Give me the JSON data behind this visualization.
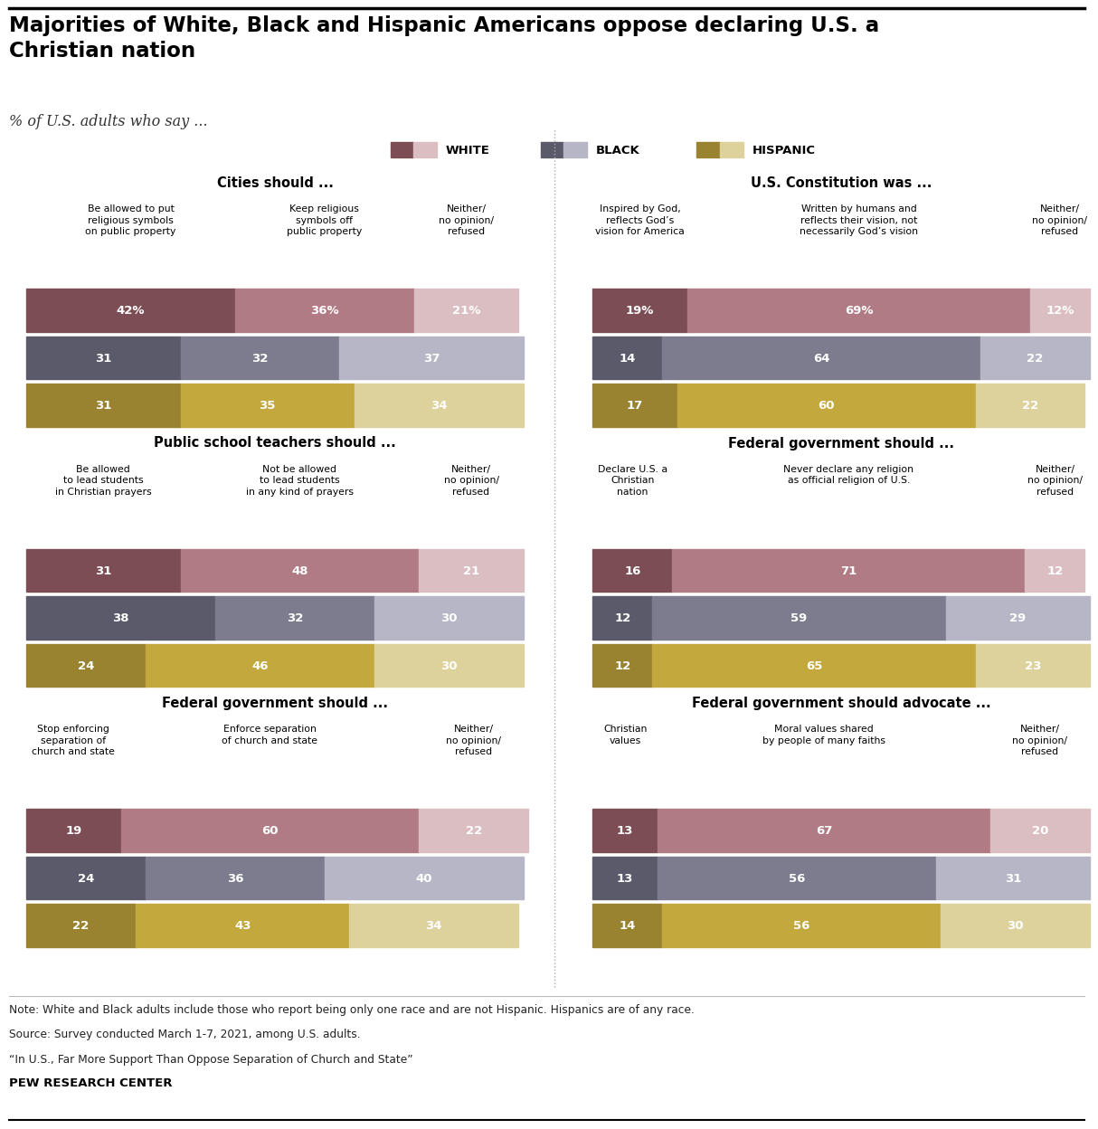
{
  "title": "Majorities of White, Black and Hispanic Americans oppose declaring U.S. a\nChristian nation",
  "subtitle": "% of U.S. adults who say ...",
  "note_lines": [
    "Note: White and Black adults include those who report being only one race and are not Hispanic. Hispanics are of any race.",
    "Source: Survey conducted March 1-7, 2021, among U.S. adults.",
    "“In U.S., Far More Support Than Oppose Separation of Church and State”"
  ],
  "source_label": "PEW RESEARCH CENTER",
  "colors": {
    "white_dark": "#7d4d55",
    "white_mid": "#b07b84",
    "white_light": "#dbbec2",
    "black_dark": "#5a5a6b",
    "black_mid": "#7c7c8e",
    "black_light": "#b6b6c6",
    "hispanic_dark": "#998330",
    "hispanic_mid": "#c3a83e",
    "hispanic_light": "#ded29c"
  },
  "panels": [
    {
      "title": "Cities should ...",
      "col_headers": [
        "Be allowed to put\nreligious symbols\non public property",
        "Keep religious\nsymbols off\npublic property",
        "Neither/\nno opinion/\nrefused"
      ],
      "rows": [
        {
          "values": [
            42,
            36,
            21
          ],
          "show_pct": true,
          "race": "white"
        },
        {
          "values": [
            31,
            32,
            37
          ],
          "show_pct": false,
          "race": "black"
        },
        {
          "values": [
            31,
            35,
            34
          ],
          "show_pct": false,
          "race": "hispanic"
        }
      ]
    },
    {
      "title": "U.S. Constitution was ...",
      "col_headers": [
        "Inspired by God,\nreflects God’s\nvision for America",
        "Written by humans and\nreflects their vision, not\nnecessarily God’s vision",
        "Neither/\nno opinion/\nrefused"
      ],
      "rows": [
        {
          "values": [
            19,
            69,
            12
          ],
          "show_pct": true,
          "race": "white"
        },
        {
          "values": [
            14,
            64,
            22
          ],
          "show_pct": false,
          "race": "black"
        },
        {
          "values": [
            17,
            60,
            22
          ],
          "show_pct": false,
          "race": "hispanic"
        }
      ]
    },
    {
      "title": "Public school teachers should ...",
      "col_headers": [
        "Be allowed\nto lead students\nin Christian prayers",
        "Not be allowed\nto lead students\nin any kind of prayers",
        "Neither/\nno opinion/\nrefused"
      ],
      "rows": [
        {
          "values": [
            31,
            48,
            21
          ],
          "show_pct": false,
          "race": "white"
        },
        {
          "values": [
            38,
            32,
            30
          ],
          "show_pct": false,
          "race": "black"
        },
        {
          "values": [
            24,
            46,
            30
          ],
          "show_pct": false,
          "race": "hispanic"
        }
      ]
    },
    {
      "title": "Federal government should ...",
      "col_headers": [
        "Declare U.S. a\nChristian\nnation",
        "Never declare any religion\nas official religion of U.S.",
        "Neither/\nno opinion/\nrefused"
      ],
      "rows": [
        {
          "values": [
            16,
            71,
            12
          ],
          "show_pct": false,
          "race": "white"
        },
        {
          "values": [
            12,
            59,
            29
          ],
          "show_pct": false,
          "race": "black"
        },
        {
          "values": [
            12,
            65,
            23
          ],
          "show_pct": false,
          "race": "hispanic"
        }
      ]
    },
    {
      "title": "Federal government should ...",
      "col_headers": [
        "Stop enforcing\nseparation of\nchurch and state",
        "Enforce separation\nof church and state",
        "Neither/\nno opinion/\nrefused"
      ],
      "rows": [
        {
          "values": [
            19,
            60,
            22
          ],
          "show_pct": false,
          "race": "white"
        },
        {
          "values": [
            24,
            36,
            40
          ],
          "show_pct": false,
          "race": "black"
        },
        {
          "values": [
            22,
            43,
            34
          ],
          "show_pct": false,
          "race": "hispanic"
        }
      ]
    },
    {
      "title": "Federal government should advocate ...",
      "col_headers": [
        "Christian\nvalues",
        "Moral values shared\nby people of many faiths",
        "Neither/\nno opinion/\nrefused"
      ],
      "rows": [
        {
          "values": [
            13,
            67,
            20
          ],
          "show_pct": false,
          "race": "white"
        },
        {
          "values": [
            13,
            56,
            31
          ],
          "show_pct": false,
          "race": "black"
        },
        {
          "values": [
            14,
            56,
            30
          ],
          "show_pct": false,
          "race": "hispanic"
        }
      ]
    }
  ]
}
